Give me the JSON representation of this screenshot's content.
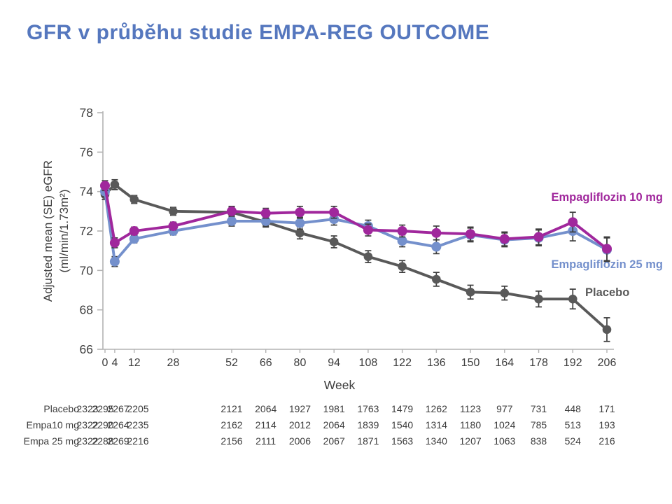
{
  "slide": {
    "title": "GFR v průběhu studie EMPA-REG OUTCOME"
  },
  "colors": {
    "title": "#5577BE",
    "axis": "#b3b3b3",
    "tick_text": "#3d3d3d",
    "error_bar": "#3d3d3d",
    "empagliflozin_10mg": "#A0279C",
    "empagliflozin_25mg": "#7490CC",
    "placebo": "#595959"
  },
  "chart_data": {
    "type": "line",
    "xlabel": "Week",
    "ylabel_line1": "Adjusted mean (SE) eGFR",
    "ylabel_line2": "(ml/min/1.73m²)",
    "x": [
      0,
      4,
      12,
      28,
      52,
      66,
      80,
      94,
      108,
      122,
      136,
      150,
      164,
      178,
      192,
      206
    ],
    "ylim": [
      66,
      78
    ],
    "yticks": [
      66,
      68,
      70,
      72,
      74,
      76,
      78
    ],
    "grid": false,
    "legend_position": "inline-right",
    "error_bars_se": [
      0.25,
      0.25,
      0.2,
      0.2,
      0.25,
      0.25,
      0.3,
      0.3,
      0.3,
      0.3,
      0.35,
      0.35,
      0.35,
      0.4,
      0.5,
      0.6
    ],
    "series": [
      {
        "name": "Placebo",
        "color_key": "placebo",
        "point_radius": 6.3,
        "values": [
          73.85,
          74.35,
          73.6,
          73.0,
          72.95,
          72.45,
          71.9,
          71.45,
          70.7,
          70.2,
          69.55,
          68.9,
          68.85,
          68.55,
          68.55,
          67.0
        ]
      },
      {
        "name": "Empagliflozin 25 mg",
        "color_key": "empagliflozin_25mg",
        "point_radius": 7,
        "values": [
          74.0,
          70.45,
          71.6,
          72.0,
          72.5,
          72.5,
          72.4,
          72.6,
          72.25,
          71.5,
          71.2,
          71.8,
          71.55,
          71.65,
          72.0,
          71.05
        ]
      },
      {
        "name": "Empagliflozin 10 mg",
        "color_key": "empagliflozin_10mg",
        "point_radius": 7,
        "values": [
          74.3,
          71.4,
          72.0,
          72.25,
          73.0,
          72.9,
          72.95,
          72.95,
          72.05,
          72.0,
          71.9,
          71.85,
          71.6,
          71.7,
          72.45,
          71.1
        ]
      }
    ]
  },
  "table": {
    "rows": [
      {
        "label": "Placebo",
        "values": [
          2323,
          2295,
          2267,
          2205,
          2121,
          2064,
          1927,
          1981,
          1763,
          1479,
          1262,
          1123,
          977,
          731,
          448,
          171
        ]
      },
      {
        "label": "Empa10 mg",
        "values": [
          2322,
          2290,
          2264,
          2235,
          2162,
          2114,
          2012,
          2064,
          1839,
          1540,
          1314,
          1180,
          1024,
          785,
          513,
          193
        ]
      },
      {
        "label": "Empa 25 mg",
        "values": [
          2322,
          2288,
          2269,
          2216,
          2156,
          2111,
          2006,
          2067,
          1871,
          1563,
          1340,
          1207,
          1063,
          838,
          524,
          216
        ]
      }
    ]
  }
}
